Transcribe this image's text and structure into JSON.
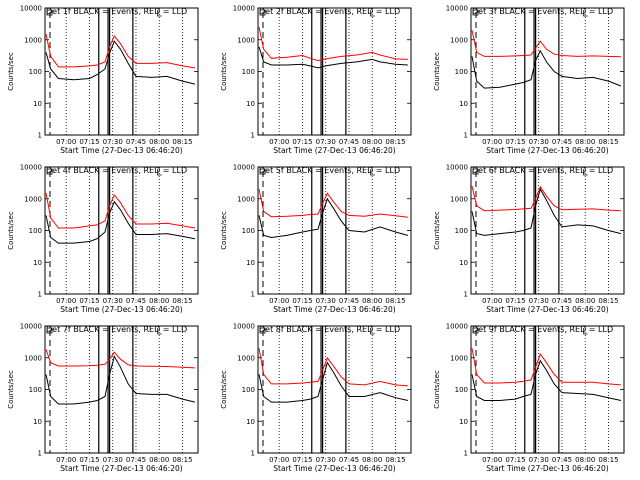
{
  "ylabel": "Counts/sec",
  "xlabel": "Start Time (27-Dec-13 06:46:20)",
  "x_tick_labels": [
    "07:00",
    "07:15",
    "07:30",
    "07:45",
    "08:00",
    "08:15"
  ],
  "y_tick_labels": [
    "1",
    "10",
    "100",
    "1000",
    "10000"
  ],
  "colors": {
    "events": "#000000",
    "lld": "#ff0000"
  },
  "chart_data": [
    {
      "type": "line",
      "title": "Det 1f BLACK = Events, RED = LLD",
      "yscale": "log",
      "ylim": [
        1,
        10000
      ],
      "xlim": [
        "06:46:20",
        "08:25"
      ],
      "series": [
        {
          "name": "Events",
          "color": "#000000",
          "x": [
            "06:47",
            "06:50",
            "06:55",
            "07:05",
            "07:15",
            "07:20",
            "07:25",
            "07:28",
            "07:31",
            "07:35",
            "07:40",
            "07:45",
            "07:55",
            "08:05",
            "08:15",
            "08:23"
          ],
          "values": [
            400,
            120,
            60,
            55,
            60,
            80,
            120,
            380,
            900,
            500,
            180,
            70,
            65,
            70,
            50,
            40
          ]
        },
        {
          "name": "LLD",
          "color": "#ff0000",
          "x": [
            "06:47",
            "06:50",
            "06:55",
            "07:05",
            "07:15",
            "07:20",
            "07:25",
            "07:28",
            "07:31",
            "07:35",
            "07:40",
            "07:45",
            "07:55",
            "08:05",
            "08:15",
            "08:23"
          ],
          "values": [
            1500,
            300,
            140,
            140,
            150,
            160,
            200,
            600,
            1300,
            750,
            300,
            180,
            180,
            190,
            150,
            130
          ]
        }
      ]
    },
    {
      "type": "line",
      "title": "Det 2f BLACK = Events, RED = LLD",
      "yscale": "log",
      "ylim": [
        1,
        10000
      ],
      "xlim": [
        "06:46:20",
        "08:25"
      ],
      "series": [
        {
          "name": "Events",
          "color": "#000000",
          "x": [
            "06:47",
            "06:50",
            "06:55",
            "07:05",
            "07:15",
            "07:20",
            "07:25",
            "07:30",
            "07:40",
            "07:50",
            "08:00",
            "08:05",
            "08:15",
            "08:23"
          ],
          "values": [
            600,
            200,
            160,
            160,
            170,
            150,
            130,
            150,
            180,
            200,
            240,
            200,
            170,
            160
          ]
        },
        {
          "name": "LLD",
          "color": "#ff0000",
          "x": [
            "06:47",
            "06:50",
            "06:55",
            "07:05",
            "07:15",
            "07:20",
            "07:25",
            "07:30",
            "07:40",
            "07:50",
            "08:00",
            "08:05",
            "08:15",
            "08:23"
          ],
          "values": [
            2500,
            500,
            260,
            280,
            320,
            260,
            220,
            250,
            300,
            330,
            400,
            330,
            250,
            240
          ]
        }
      ]
    },
    {
      "type": "line",
      "title": "Det 3f BLACK = Events, RED = LLD",
      "yscale": "log",
      "ylim": [
        1,
        10000
      ],
      "xlim": [
        "06:46:20",
        "08:25"
      ],
      "series": [
        {
          "name": "Events",
          "color": "#000000",
          "x": [
            "06:47",
            "06:50",
            "06:55",
            "07:05",
            "07:15",
            "07:20",
            "07:25",
            "07:28",
            "07:31",
            "07:35",
            "07:40",
            "07:45",
            "07:55",
            "08:05",
            "08:15",
            "08:23"
          ],
          "values": [
            300,
            50,
            30,
            32,
            40,
            45,
            55,
            220,
            450,
            200,
            100,
            70,
            60,
            65,
            50,
            35
          ]
        },
        {
          "name": "LLD",
          "color": "#ff0000",
          "x": [
            "06:47",
            "06:50",
            "06:55",
            "07:05",
            "07:15",
            "07:20",
            "07:25",
            "07:28",
            "07:31",
            "07:35",
            "07:40",
            "07:45",
            "07:55",
            "08:05",
            "08:15",
            "08:23"
          ],
          "values": [
            2000,
            400,
            300,
            300,
            310,
            320,
            330,
            550,
            900,
            500,
            350,
            320,
            300,
            310,
            300,
            290
          ]
        }
      ]
    },
    {
      "type": "line",
      "title": "Det 4f BLACK = Events, RED = LLD",
      "yscale": "log",
      "ylim": [
        1,
        10000
      ],
      "xlim": [
        "06:46:20",
        "08:25"
      ],
      "series": [
        {
          "name": "Events",
          "color": "#000000",
          "x": [
            "06:47",
            "06:50",
            "06:55",
            "07:05",
            "07:15",
            "07:20",
            "07:25",
            "07:28",
            "07:31",
            "07:35",
            "07:40",
            "07:45",
            "07:55",
            "08:05",
            "08:15",
            "08:23"
          ],
          "values": [
            300,
            60,
            40,
            40,
            45,
            55,
            90,
            350,
            800,
            450,
            170,
            75,
            75,
            80,
            65,
            55
          ]
        },
        {
          "name": "LLD",
          "color": "#ff0000",
          "x": [
            "06:47",
            "06:50",
            "06:55",
            "07:05",
            "07:15",
            "07:20",
            "07:25",
            "07:28",
            "07:31",
            "07:35",
            "07:40",
            "07:45",
            "07:55",
            "08:05",
            "08:15",
            "08:23"
          ],
          "values": [
            1500,
            250,
            120,
            120,
            140,
            150,
            200,
            600,
            1300,
            750,
            300,
            160,
            160,
            170,
            140,
            120
          ]
        }
      ]
    },
    {
      "type": "line",
      "title": "Det 5f BLACK = Events, RED = LLD",
      "yscale": "log",
      "ylim": [
        1,
        10000
      ],
      "xlim": [
        "06:46:20",
        "08:25"
      ],
      "series": [
        {
          "name": "Events",
          "color": "#000000",
          "x": [
            "06:47",
            "06:50",
            "06:55",
            "07:05",
            "07:15",
            "07:20",
            "07:25",
            "07:28",
            "07:31",
            "07:35",
            "07:40",
            "07:45",
            "07:55",
            "08:05",
            "08:15",
            "08:23"
          ],
          "values": [
            300,
            70,
            60,
            70,
            90,
            100,
            110,
            350,
            1000,
            500,
            200,
            100,
            90,
            130,
            90,
            70
          ]
        },
        {
          "name": "LLD",
          "color": "#ff0000",
          "x": [
            "06:47",
            "06:50",
            "06:55",
            "07:05",
            "07:15",
            "07:20",
            "07:25",
            "07:28",
            "07:31",
            "07:35",
            "07:40",
            "07:45",
            "07:55",
            "08:05",
            "08:15",
            "08:23"
          ],
          "values": [
            2000,
            400,
            270,
            280,
            300,
            320,
            330,
            700,
            1500,
            800,
            400,
            300,
            280,
            330,
            290,
            260
          ]
        }
      ]
    },
    {
      "type": "line",
      "title": "Det 6f BLACK = Events, RED = LLD",
      "yscale": "log",
      "ylim": [
        1,
        10000
      ],
      "xlim": [
        "06:46:20",
        "08:25"
      ],
      "series": [
        {
          "name": "Events",
          "color": "#000000",
          "x": [
            "06:47",
            "06:50",
            "06:55",
            "07:05",
            "07:15",
            "07:20",
            "07:25",
            "07:28",
            "07:31",
            "07:35",
            "07:40",
            "07:45",
            "07:55",
            "08:05",
            "08:15",
            "08:23"
          ],
          "values": [
            400,
            80,
            70,
            80,
            90,
            100,
            120,
            600,
            2000,
            900,
            300,
            130,
            150,
            140,
            100,
            80
          ]
        },
        {
          "name": "LLD",
          "color": "#ff0000",
          "x": [
            "06:47",
            "06:50",
            "06:55",
            "07:05",
            "07:15",
            "07:20",
            "07:25",
            "07:28",
            "07:31",
            "07:35",
            "07:40",
            "07:45",
            "07:55",
            "08:05",
            "08:15",
            "08:23"
          ],
          "values": [
            2500,
            600,
            420,
            440,
            460,
            480,
            500,
            1000,
            2400,
            1200,
            600,
            450,
            470,
            480,
            440,
            420
          ]
        }
      ]
    },
    {
      "type": "line",
      "title": "Det 7f BLACK = Events, RED = LLD",
      "yscale": "log",
      "ylim": [
        1,
        10000
      ],
      "xlim": [
        "06:46:20",
        "08:25"
      ],
      "series": [
        {
          "name": "Events",
          "color": "#000000",
          "x": [
            "06:47",
            "06:50",
            "06:55",
            "07:05",
            "07:15",
            "07:20",
            "07:25",
            "07:28",
            "07:31",
            "07:35",
            "07:40",
            "07:45",
            "07:55",
            "08:05",
            "08:15",
            "08:23"
          ],
          "values": [
            300,
            60,
            35,
            35,
            40,
            45,
            60,
            300,
            1100,
            500,
            150,
            75,
            70,
            70,
            50,
            40
          ]
        },
        {
          "name": "LLD",
          "color": "#ff0000",
          "x": [
            "06:47",
            "06:50",
            "06:55",
            "07:05",
            "07:15",
            "07:20",
            "07:25",
            "07:28",
            "07:31",
            "07:35",
            "07:40",
            "07:45",
            "07:55",
            "08:05",
            "08:15",
            "08:23"
          ],
          "values": [
            1800,
            700,
            550,
            550,
            560,
            580,
            620,
            900,
            1500,
            900,
            600,
            550,
            540,
            530,
            500,
            480
          ]
        }
      ]
    },
    {
      "type": "line",
      "title": "Det 8f BLACK = Events, RED = LLD",
      "yscale": "log",
      "ylim": [
        1,
        10000
      ],
      "xlim": [
        "06:46:20",
        "08:25"
      ],
      "series": [
        {
          "name": "Events",
          "color": "#000000",
          "x": [
            "06:47",
            "06:50",
            "06:55",
            "07:05",
            "07:15",
            "07:20",
            "07:25",
            "07:28",
            "07:31",
            "07:35",
            "07:40",
            "07:45",
            "07:55",
            "08:05",
            "08:15",
            "08:23"
          ],
          "values": [
            300,
            60,
            40,
            40,
            45,
            50,
            60,
            200,
            700,
            350,
            130,
            60,
            60,
            80,
            55,
            45
          ]
        },
        {
          "name": "LLD",
          "color": "#ff0000",
          "x": [
            "06:47",
            "06:50",
            "06:55",
            "07:05",
            "07:15",
            "07:20",
            "07:25",
            "07:28",
            "07:31",
            "07:35",
            "07:40",
            "07:45",
            "07:55",
            "08:05",
            "08:15",
            "08:23"
          ],
          "values": [
            2000,
            300,
            150,
            150,
            160,
            170,
            180,
            400,
            1000,
            550,
            250,
            150,
            140,
            180,
            140,
            130
          ]
        }
      ]
    },
    {
      "type": "line",
      "title": "Det 9f BLACK = Events, RED = LLD",
      "yscale": "log",
      "ylim": [
        1,
        10000
      ],
      "xlim": [
        "06:46:20",
        "08:25"
      ],
      "series": [
        {
          "name": "Events",
          "color": "#000000",
          "x": [
            "06:47",
            "06:50",
            "06:55",
            "07:05",
            "07:15",
            "07:20",
            "07:25",
            "07:28",
            "07:31",
            "07:35",
            "07:40",
            "07:45",
            "07:55",
            "08:05",
            "08:15",
            "08:23"
          ],
          "values": [
            300,
            60,
            45,
            45,
            50,
            60,
            70,
            300,
            800,
            400,
            150,
            80,
            75,
            70,
            55,
            45
          ]
        },
        {
          "name": "LLD",
          "color": "#ff0000",
          "x": [
            "06:47",
            "06:50",
            "06:55",
            "07:05",
            "07:15",
            "07:20",
            "07:25",
            "07:28",
            "07:31",
            "07:35",
            "07:40",
            "07:45",
            "07:55",
            "08:05",
            "08:15",
            "08:23"
          ],
          "values": [
            2000,
            300,
            160,
            160,
            170,
            180,
            200,
            500,
            1300,
            700,
            300,
            170,
            170,
            170,
            150,
            140
          ]
        }
      ]
    }
  ]
}
